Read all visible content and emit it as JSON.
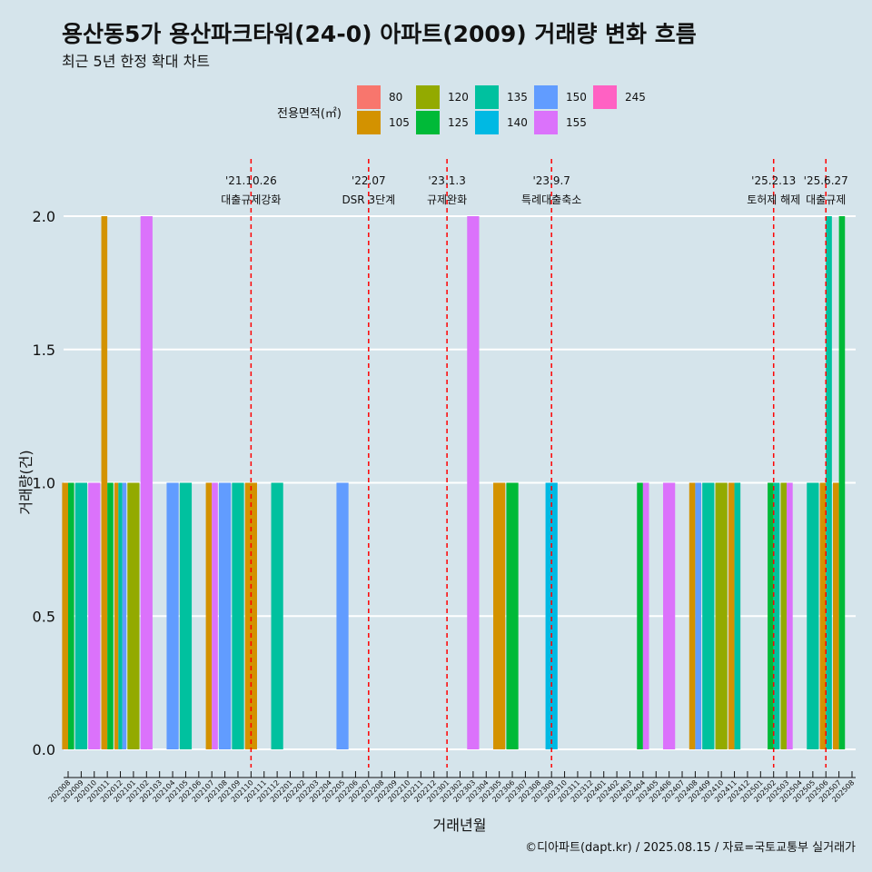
{
  "chart_data": {
    "type": "bar",
    "title": "용산동5가 용산파크타워(24-0) 아파트(2009) 거래량 변화 흐름",
    "subtitle": "최근 5년 한정 확대 차트",
    "xlabel": "거래년월",
    "ylabel": "거래량(건)",
    "ylim": [
      0,
      2
    ],
    "yticks": [
      "0.0",
      "0.5",
      "1.0",
      "1.5",
      "2.0"
    ],
    "grid": "horizontal",
    "legend_title": "전용면적(㎡)",
    "legend_position": "top",
    "series": [
      {
        "name": "80",
        "color": "#f8766d"
      },
      {
        "name": "105",
        "color": "#d39200"
      },
      {
        "name": "120",
        "color": "#93aa00"
      },
      {
        "name": "125",
        "color": "#00ba38"
      },
      {
        "name": "135",
        "color": "#00c19f"
      },
      {
        "name": "140",
        "color": "#00b9e3"
      },
      {
        "name": "150",
        "color": "#619cff"
      },
      {
        "name": "155",
        "color": "#db72fb"
      },
      {
        "name": "245",
        "color": "#ff61c3"
      }
    ],
    "categories": [
      "202008",
      "202009",
      "202010",
      "202011",
      "202012",
      "202101",
      "202102",
      "202103",
      "202104",
      "202105",
      "202106",
      "202107",
      "202108",
      "202109",
      "202110",
      "202111",
      "202112",
      "202201",
      "202202",
      "202203",
      "202204",
      "202205",
      "202206",
      "202207",
      "202208",
      "202209",
      "202210",
      "202211",
      "202212",
      "202301",
      "202302",
      "202303",
      "202304",
      "202305",
      "202306",
      "202307",
      "202308",
      "202309",
      "202310",
      "202311",
      "202312",
      "202401",
      "202402",
      "202403",
      "202404",
      "202405",
      "202406",
      "202407",
      "202408",
      "202409",
      "202410",
      "202411",
      "202412",
      "202501",
      "202502",
      "202503",
      "202504",
      "202505",
      "202506",
      "202507",
      "202508"
    ],
    "bars": [
      {
        "month": "202008",
        "area": "105",
        "value": 1
      },
      {
        "month": "202008",
        "area": "125",
        "value": 1
      },
      {
        "month": "202009",
        "area": "135",
        "value": 1
      },
      {
        "month": "202010",
        "area": "155",
        "value": 1
      },
      {
        "month": "202011",
        "area": "105",
        "value": 2
      },
      {
        "month": "202011",
        "area": "125",
        "value": 1
      },
      {
        "month": "202012",
        "area": "105",
        "value": 1
      },
      {
        "month": "202012",
        "area": "135",
        "value": 1
      },
      {
        "month": "202012",
        "area": "150",
        "value": 1
      },
      {
        "month": "202101",
        "area": "120",
        "value": 1
      },
      {
        "month": "202102",
        "area": "155",
        "value": 2
      },
      {
        "month": "202104",
        "area": "150",
        "value": 1
      },
      {
        "month": "202105",
        "area": "135",
        "value": 1
      },
      {
        "month": "202107",
        "area": "105",
        "value": 1
      },
      {
        "month": "202107",
        "area": "155",
        "value": 1
      },
      {
        "month": "202108",
        "area": "150",
        "value": 1
      },
      {
        "month": "202109",
        "area": "135",
        "value": 1
      },
      {
        "month": "202110",
        "area": "105",
        "value": 1
      },
      {
        "month": "202112",
        "area": "135",
        "value": 1
      },
      {
        "month": "202205",
        "area": "150",
        "value": 1
      },
      {
        "month": "202303",
        "area": "155",
        "value": 2
      },
      {
        "month": "202305",
        "area": "105",
        "value": 1
      },
      {
        "month": "202306",
        "area": "125",
        "value": 1
      },
      {
        "month": "202309",
        "area": "140",
        "value": 1
      },
      {
        "month": "202404",
        "area": "125",
        "value": 1
      },
      {
        "month": "202404",
        "area": "155",
        "value": 1
      },
      {
        "month": "202406",
        "area": "155",
        "value": 1
      },
      {
        "month": "202408",
        "area": "105",
        "value": 1
      },
      {
        "month": "202408",
        "area": "150",
        "value": 1
      },
      {
        "month": "202409",
        "area": "135",
        "value": 1
      },
      {
        "month": "202410",
        "area": "120",
        "value": 1
      },
      {
        "month": "202411",
        "area": "105",
        "value": 1
      },
      {
        "month": "202411",
        "area": "135",
        "value": 1
      },
      {
        "month": "202502",
        "area": "125",
        "value": 1
      },
      {
        "month": "202502",
        "area": "135",
        "value": 1
      },
      {
        "month": "202503",
        "area": "120",
        "value": 1
      },
      {
        "month": "202503",
        "area": "155",
        "value": 1
      },
      {
        "month": "202505",
        "area": "135",
        "value": 1
      },
      {
        "month": "202506",
        "area": "105",
        "value": 1
      },
      {
        "month": "202506",
        "area": "135",
        "value": 2
      },
      {
        "month": "202507",
        "area": "105",
        "value": 1
      },
      {
        "month": "202507",
        "area": "125",
        "value": 2
      }
    ],
    "annotations": [
      {
        "month": "202110",
        "offset": 0,
        "date": "'21.10.26",
        "label": "대출규제강화"
      },
      {
        "month": "202207",
        "offset": 0,
        "date": "'22.07",
        "label": "DSR 3단계"
      },
      {
        "month": "202301",
        "offset": 0,
        "date": "'23.1.3",
        "label": "규제완화"
      },
      {
        "month": "202309",
        "offset": 0,
        "date": "'23.9.7",
        "label": "특례대출축소"
      },
      {
        "month": "202502",
        "offset": 0,
        "date": "'25.2.13",
        "label": "토허제 해제"
      },
      {
        "month": "202506",
        "offset": 0,
        "date": "'25.6.27",
        "label": "대출규제"
      }
    ],
    "line_color": "#ff0000"
  },
  "footer": {
    "credit": "©디아파트(dapt.kr) / 2025.08.15 / 자료=국토교통부 실거래가"
  }
}
